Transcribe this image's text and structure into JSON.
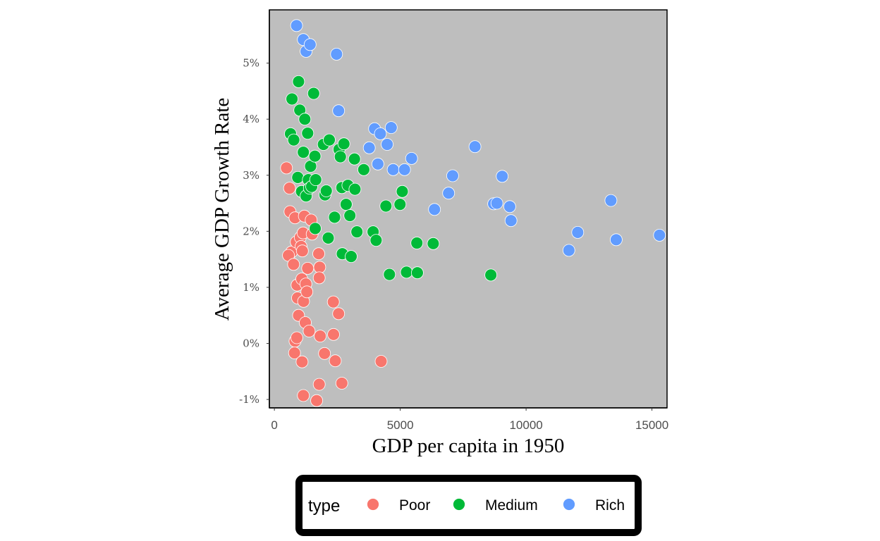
{
  "chart_data": {
    "type": "scatter",
    "title": "",
    "xlabel": "GDP per capita in 1950",
    "ylabel": "Average GDP Growth Rate",
    "xlim": [
      -200,
      15600
    ],
    "ylim": [
      -0.0115,
      0.0595
    ],
    "xticks": [
      0,
      5000,
      10000,
      15000
    ],
    "xtick_labels": [
      "0",
      "5000",
      "10000",
      "15000"
    ],
    "yticks": [
      -0.01,
      0,
      0.01,
      0.02,
      0.03,
      0.04,
      0.05
    ],
    "ytick_labels": [
      "-1%",
      "0%",
      "1%",
      "2%",
      "3%",
      "4%",
      "5%"
    ],
    "grid": false,
    "panel_background": "#bebebe",
    "legend": {
      "title": "type",
      "position": "bottom"
    },
    "series": [
      {
        "name": "Poor",
        "color": "#F8766D",
        "points": [
          [
            480,
            0.0313
          ],
          [
            600,
            0.0277
          ],
          [
            620,
            0.0235
          ],
          [
            680,
            0.0163
          ],
          [
            560,
            0.0157
          ],
          [
            760,
            0.0141
          ],
          [
            820,
            0.0224
          ],
          [
            870,
            0.0181
          ],
          [
            900,
            0.0104
          ],
          [
            920,
            0.0081
          ],
          [
            960,
            0.005
          ],
          [
            1030,
            0.0189
          ],
          [
            1060,
            0.0173
          ],
          [
            1090,
            0.0115
          ],
          [
            1110,
            0.0165
          ],
          [
            1140,
            0.0197
          ],
          [
            1160,
            0.0075
          ],
          [
            1190,
            0.0227
          ],
          [
            1230,
            0.0037
          ],
          [
            1250,
            0.0106
          ],
          [
            1290,
            0.0092
          ],
          [
            1320,
            0.0134
          ],
          [
            1380,
            0.0022
          ],
          [
            1460,
            0.022
          ],
          [
            1500,
            0.0195
          ],
          [
            1760,
            0.016
          ],
          [
            1800,
            0.0136
          ],
          [
            1780,
            0.0117
          ],
          [
            1820,
            0.0013
          ],
          [
            1990,
            -0.0018
          ],
          [
            2340,
            0.0074
          ],
          [
            2350,
            0.0016
          ],
          [
            2420,
            -0.0031
          ],
          [
            2550,
            0.0053
          ],
          [
            2680,
            -0.0071
          ],
          [
            4240,
            -0.0032
          ],
          [
            820,
            0.0004
          ],
          [
            890,
            0.001
          ],
          [
            800,
            -0.0017
          ],
          [
            1100,
            -0.0033
          ],
          [
            1150,
            -0.0093
          ],
          [
            1680,
            -0.0102
          ],
          [
            1780,
            -0.0073
          ]
        ]
      },
      {
        "name": "Medium",
        "color": "#00BA38",
        "points": [
          [
            640,
            0.0374
          ],
          [
            700,
            0.0436
          ],
          [
            770,
            0.0363
          ],
          [
            930,
            0.0296
          ],
          [
            960,
            0.0467
          ],
          [
            1010,
            0.0416
          ],
          [
            1080,
            0.0271
          ],
          [
            1150,
            0.0341
          ],
          [
            1210,
            0.04
          ],
          [
            1260,
            0.0263
          ],
          [
            1320,
            0.0375
          ],
          [
            1350,
            0.0292
          ],
          [
            1390,
            0.0277
          ],
          [
            1440,
            0.0316
          ],
          [
            1480,
            0.028
          ],
          [
            1560,
            0.0446
          ],
          [
            1610,
            0.0334
          ],
          [
            1640,
            0.0292
          ],
          [
            1620,
            0.0205
          ],
          [
            1950,
            0.0355
          ],
          [
            2010,
            0.0265
          ],
          [
            2060,
            0.0272
          ],
          [
            2140,
            0.0188
          ],
          [
            2180,
            0.0363
          ],
          [
            2390,
            0.0225
          ],
          [
            2570,
            0.0346
          ],
          [
            2620,
            0.0333
          ],
          [
            2680,
            0.0278
          ],
          [
            2700,
            0.016
          ],
          [
            2760,
            0.0356
          ],
          [
            2850,
            0.0248
          ],
          [
            2920,
            0.0282
          ],
          [
            3000,
            0.0228
          ],
          [
            3050,
            0.0155
          ],
          [
            3180,
            0.0329
          ],
          [
            3200,
            0.0275
          ],
          [
            3280,
            0.0199
          ],
          [
            3550,
            0.031
          ],
          [
            3920,
            0.0199
          ],
          [
            4040,
            0.0184
          ],
          [
            4430,
            0.0245
          ],
          [
            4570,
            0.0123
          ],
          [
            4990,
            0.0248
          ],
          [
            5080,
            0.0271
          ],
          [
            5250,
            0.0127
          ],
          [
            5660,
            0.0179
          ],
          [
            5680,
            0.0126
          ],
          [
            6310,
            0.0178
          ],
          [
            8600,
            0.0122
          ]
        ]
      },
      {
        "name": "Rich",
        "color": "#619CFF",
        "points": [
          [
            880,
            0.0567
          ],
          [
            1150,
            0.0542
          ],
          [
            1260,
            0.0521
          ],
          [
            1420,
            0.0533
          ],
          [
            2470,
            0.0516
          ],
          [
            2550,
            0.0415
          ],
          [
            3770,
            0.0349
          ],
          [
            3980,
            0.0383
          ],
          [
            4110,
            0.032
          ],
          [
            4210,
            0.0374
          ],
          [
            4480,
            0.0355
          ],
          [
            4640,
            0.0385
          ],
          [
            4720,
            0.031
          ],
          [
            5170,
            0.031
          ],
          [
            5450,
            0.033
          ],
          [
            6360,
            0.0239
          ],
          [
            6920,
            0.0268
          ],
          [
            7080,
            0.0299
          ],
          [
            7970,
            0.0351
          ],
          [
            8710,
            0.0249
          ],
          [
            8840,
            0.025
          ],
          [
            9050,
            0.0298
          ],
          [
            9350,
            0.0244
          ],
          [
            9400,
            0.0219
          ],
          [
            11700,
            0.0166
          ],
          [
            12050,
            0.0198
          ],
          [
            13370,
            0.0255
          ],
          [
            13580,
            0.0185
          ],
          [
            15300,
            0.0193
          ]
        ]
      }
    ]
  }
}
